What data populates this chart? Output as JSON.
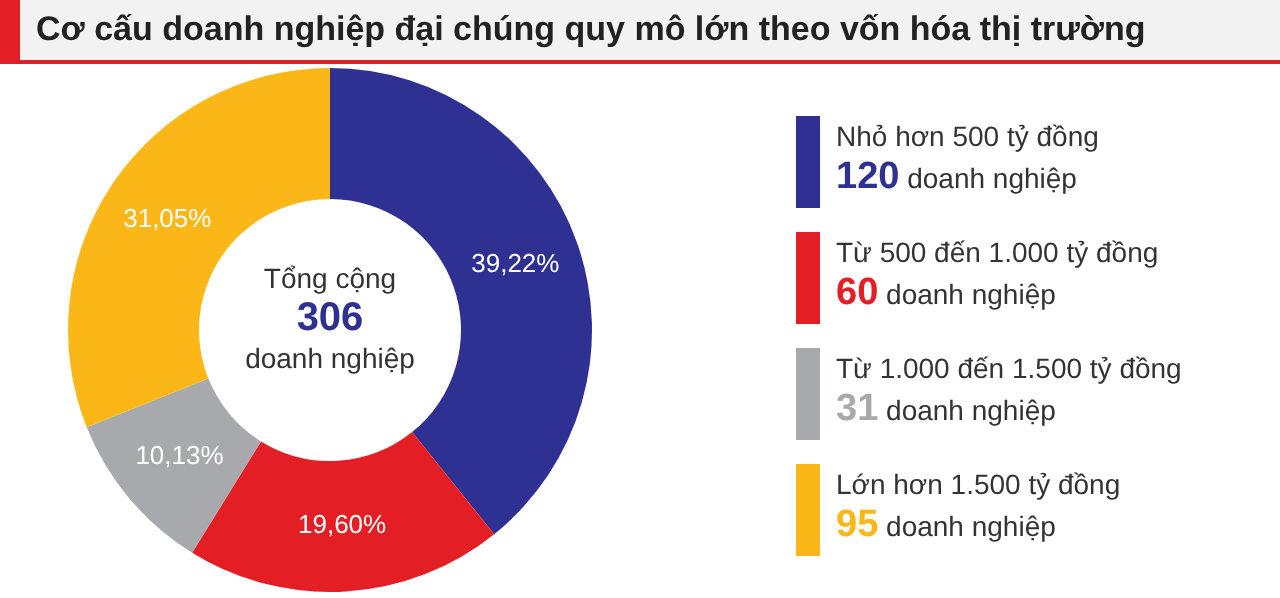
{
  "chart_data": {
    "type": "donut",
    "title": "Cơ cấu doanh nghiệp đại chúng quy mô lớn theo vốn hóa thị trường",
    "categories": [
      "Nhỏ hơn 500 tỷ đồng",
      "Từ 500 đến 1.000 tỷ đồng",
      "Từ 1.000 đến 1.500 tỷ đồng",
      "Lớn hơn 1.500 tỷ đồng"
    ],
    "values": [
      39.22,
      19.6,
      10.13,
      31.05
    ],
    "value_labels": [
      "39,22%",
      "19,60%",
      "10,13%",
      "31,05%"
    ],
    "colors": [
      "#2e3192",
      "#e31e24",
      "#a7a9ac",
      "#fbb617"
    ],
    "legend": "right",
    "annotations": [
      "Tổng cộng",
      "306",
      "doanh nghiệp",
      "120 doanh nghiệp",
      "60 doanh nghiệp",
      "31 doanh nghiệp",
      "95 doanh nghiệp"
    ]
  }
}
